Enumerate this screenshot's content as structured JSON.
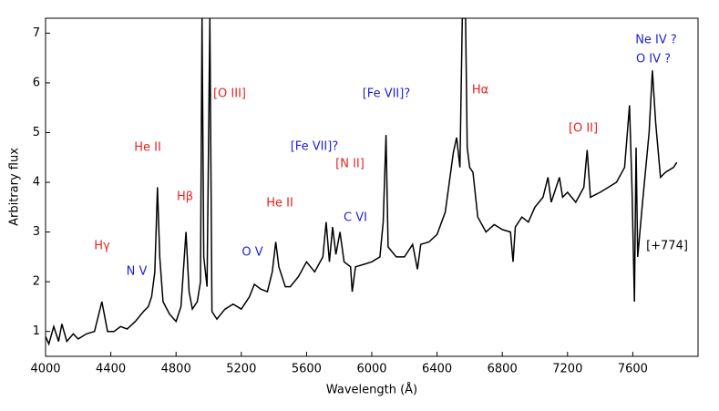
{
  "chart_data": {
    "type": "line",
    "x_label": "Wavelength (Å)",
    "y_label": "Arbitrary flux",
    "xlim": [
      4000,
      8000
    ],
    "ylim": [
      0.5,
      7.3
    ],
    "xticks": [
      4000,
      4400,
      4800,
      5200,
      5600,
      6000,
      6400,
      6800,
      7200,
      7600
    ],
    "yticks": [
      1,
      2,
      3,
      4,
      5,
      6,
      7
    ],
    "series": [
      {
        "color": "#000000",
        "x": [
          4000,
          4020,
          4050,
          4080,
          4100,
          4130,
          4170,
          4200,
          4250,
          4300,
          4330,
          4345,
          4360,
          4380,
          4420,
          4460,
          4500,
          4550,
          4600,
          4630,
          4650,
          4670,
          4686,
          4700,
          4720,
          4760,
          4800,
          4830,
          4861,
          4880,
          4900,
          4930,
          4950,
          4959,
          4970,
          4990,
          5007,
          5020,
          5050,
          5100,
          5150,
          5200,
          5250,
          5280,
          5320,
          5360,
          5390,
          5411,
          5430,
          5470,
          5500,
          5550,
          5600,
          5650,
          5700,
          5720,
          5740,
          5760,
          5780,
          5805,
          5830,
          5870,
          5880,
          5900,
          5950,
          6000,
          6050,
          6070,
          6087,
          6100,
          6150,
          6200,
          6250,
          6280,
          6300,
          6350,
          6400,
          6450,
          6500,
          6520,
          6540,
          6555,
          6575,
          6585,
          6600,
          6620,
          6650,
          6700,
          6750,
          6800,
          6850,
          6866,
          6880,
          6920,
          6960,
          7000,
          7050,
          7080,
          7100,
          7150,
          7170,
          7200,
          7250,
          7300,
          7320,
          7340,
          7400,
          7450,
          7500,
          7550,
          7580,
          7595,
          7610,
          7620,
          7630,
          7660,
          7700,
          7720,
          7740,
          7770,
          7800,
          7850,
          7870
        ],
        "values": [
          0.9,
          0.75,
          1.1,
          0.8,
          1.15,
          0.8,
          0.95,
          0.85,
          0.95,
          1.0,
          1.4,
          1.6,
          1.35,
          1.0,
          1.0,
          1.1,
          1.05,
          1.2,
          1.4,
          1.5,
          1.7,
          2.2,
          3.9,
          2.5,
          1.6,
          1.35,
          1.2,
          1.5,
          3.0,
          1.8,
          1.45,
          1.6,
          2.0,
          7.3,
          2.5,
          1.9,
          7.3,
          1.4,
          1.25,
          1.45,
          1.55,
          1.45,
          1.7,
          1.95,
          1.85,
          1.8,
          2.2,
          2.8,
          2.3,
          1.9,
          1.9,
          2.1,
          2.4,
          2.2,
          2.5,
          3.2,
          2.4,
          3.1,
          2.55,
          3.0,
          2.4,
          2.3,
          1.8,
          2.3,
          2.35,
          2.4,
          2.5,
          3.2,
          4.95,
          2.7,
          2.5,
          2.5,
          2.75,
          2.25,
          2.75,
          2.8,
          2.95,
          3.4,
          4.6,
          4.9,
          4.3,
          7.3,
          7.3,
          4.7,
          4.3,
          4.2,
          3.3,
          3.0,
          3.15,
          3.05,
          3.0,
          2.4,
          3.1,
          3.3,
          3.2,
          3.5,
          3.7,
          4.1,
          3.6,
          4.1,
          3.7,
          3.8,
          3.6,
          3.9,
          4.65,
          3.7,
          3.8,
          3.9,
          4.0,
          4.3,
          5.55,
          3.9,
          1.6,
          4.7,
          2.5,
          3.6,
          5.0,
          6.25,
          5.2,
          4.1,
          4.2,
          4.3,
          4.4
        ]
      }
    ],
    "annotations": [
      {
        "text": "Hγ",
        "color": "#e8221f"
      },
      {
        "text": "N V",
        "color": "#1f1fd8"
      },
      {
        "text": "He II",
        "color": "#e8221f"
      },
      {
        "text": "Hβ",
        "color": "#e8221f"
      },
      {
        "text": "[O III]",
        "color": "#e8221f"
      },
      {
        "text": "O V",
        "color": "#1f1fd8"
      },
      {
        "text": "He II",
        "color": "#e8221f"
      },
      {
        "text": "[Fe VII]?",
        "color": "#1f1fd8"
      },
      {
        "text": "[N II]",
        "color": "#e8221f"
      },
      {
        "text": "C VI",
        "color": "#1f1fd8"
      },
      {
        "text": "[Fe VII]?",
        "color": "#1f1fd8"
      },
      {
        "text": "Hα",
        "color": "#e8221f"
      },
      {
        "text": "[O II]",
        "color": "#e8221f"
      },
      {
        "text": "Ne IV ?",
        "color": "#1f1fd8"
      },
      {
        "text": "O IV ?",
        "color": "#1f1fd8"
      },
      {
        "text": "[+774]",
        "color": "#000000"
      }
    ]
  }
}
